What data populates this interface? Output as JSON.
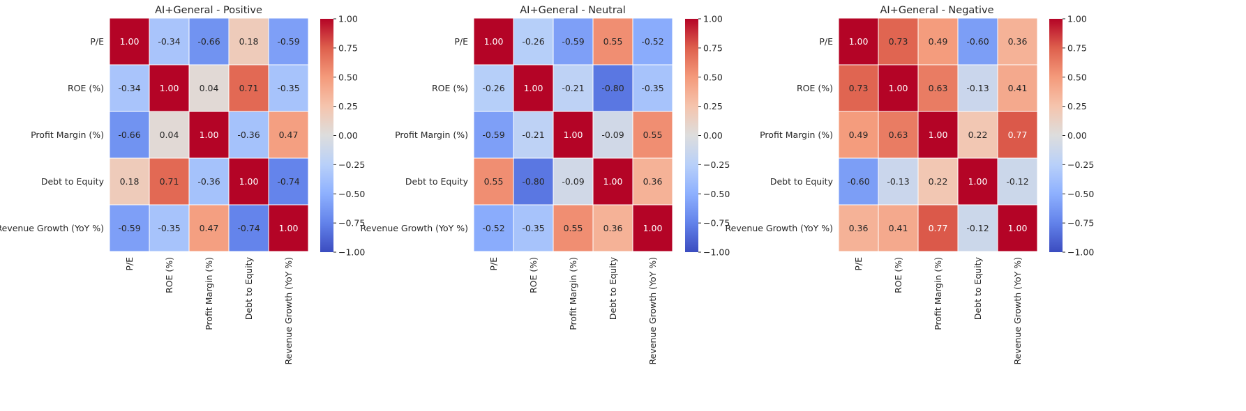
{
  "chart_data": [
    {
      "type": "heatmap",
      "title": "AI+General - Positive",
      "xlabel": "",
      "ylabel": "",
      "labels": [
        "P/E",
        "ROE (%)",
        "Profit Margin (%)",
        "Debt to Equity",
        "Revenue Growth (YoY %)"
      ],
      "values": [
        [
          1.0,
          -0.34,
          -0.66,
          0.18,
          -0.59
        ],
        [
          -0.34,
          1.0,
          0.04,
          0.71,
          -0.35
        ],
        [
          -0.66,
          0.04,
          1.0,
          -0.36,
          0.47
        ],
        [
          0.18,
          0.71,
          -0.36,
          1.0,
          -0.74
        ],
        [
          -0.59,
          -0.35,
          0.47,
          -0.74,
          1.0
        ]
      ],
      "colorbar": {
        "range": [
          -1.0,
          1.0
        ],
        "ticks": [
          "1.00",
          "0.75",
          "0.50",
          "0.25",
          "0.00",
          "−0.25",
          "−0.50",
          "−0.75",
          "−1.00"
        ],
        "colormap": "coolwarm"
      }
    },
    {
      "type": "heatmap",
      "title": "AI+General - Neutral",
      "xlabel": "",
      "ylabel": "",
      "labels": [
        "P/E",
        "ROE (%)",
        "Profit Margin (%)",
        "Debt to Equity",
        "Revenue Growth (YoY %)"
      ],
      "values": [
        [
          1.0,
          -0.26,
          -0.59,
          0.55,
          -0.52
        ],
        [
          -0.26,
          1.0,
          -0.21,
          -0.8,
          -0.35
        ],
        [
          -0.59,
          -0.21,
          1.0,
          -0.09,
          0.55
        ],
        [
          0.55,
          -0.8,
          -0.09,
          1.0,
          0.36
        ],
        [
          -0.52,
          -0.35,
          0.55,
          0.36,
          1.0
        ]
      ],
      "colorbar": {
        "range": [
          -1.0,
          1.0
        ],
        "ticks": [
          "1.00",
          "0.75",
          "0.50",
          "0.25",
          "0.00",
          "−0.25",
          "−0.50",
          "−0.75",
          "−1.00"
        ],
        "colormap": "coolwarm"
      }
    },
    {
      "type": "heatmap",
      "title": "AI+General - Negative",
      "xlabel": "",
      "ylabel": "",
      "labels": [
        "P/E",
        "ROE (%)",
        "Profit Margin (%)",
        "Debt to Equity",
        "Revenue Growth (YoY %)"
      ],
      "values": [
        [
          1.0,
          0.73,
          0.49,
          -0.6,
          0.36
        ],
        [
          0.73,
          1.0,
          0.63,
          -0.13,
          0.41
        ],
        [
          0.49,
          0.63,
          1.0,
          0.22,
          0.77
        ],
        [
          -0.6,
          -0.13,
          0.22,
          1.0,
          -0.12
        ],
        [
          0.36,
          0.41,
          0.77,
          -0.12,
          1.0
        ]
      ],
      "colorbar": {
        "range": [
          -1.0,
          1.0
        ],
        "ticks": [
          "1.00",
          "0.75",
          "0.50",
          "0.25",
          "0.00",
          "−0.25",
          "−0.50",
          "−0.75",
          "−1.00"
        ],
        "colormap": "coolwarm"
      }
    }
  ]
}
